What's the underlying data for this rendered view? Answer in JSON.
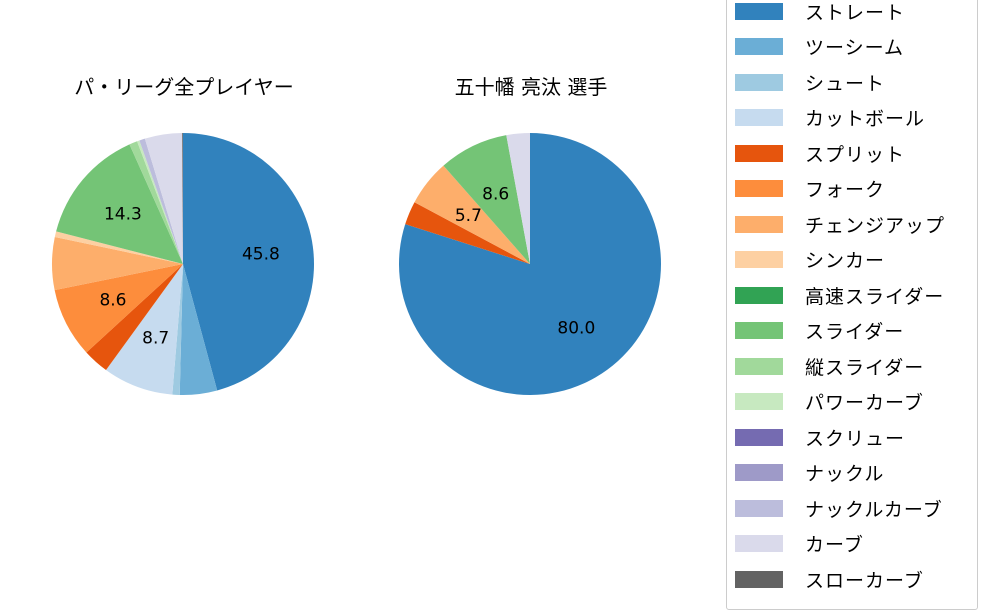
{
  "chart_data": [
    {
      "type": "pie",
      "title": "パ・リーグ全プレイヤー",
      "start_angle": 90,
      "direction": "clockwise",
      "categories": [
        "ストレート",
        "ツーシーム",
        "シュート",
        "カットボール",
        "スプリット",
        "フォーク",
        "チェンジアップ",
        "シンカー",
        "高速スライダー",
        "スライダー",
        "縦スライダー",
        "パワーカーブ",
        "スクリュー",
        "ナックル",
        "ナックルカーブ",
        "カーブ",
        "スローカーブ"
      ],
      "values": [
        45.8,
        4.6,
        0.9,
        8.7,
        3.2,
        8.6,
        6.5,
        0.7,
        0.0,
        14.3,
        1.0,
        0.3,
        0.0,
        0.0,
        0.7,
        4.6,
        0.1
      ],
      "labels_shown": [
        "45.8",
        "8.7",
        "8.6",
        "14.3"
      ]
    },
    {
      "type": "pie",
      "title": "五十幡 亮汰  選手",
      "start_angle": 90,
      "direction": "clockwise",
      "categories": [
        "ストレート",
        "ツーシーム",
        "シュート",
        "カットボール",
        "スプリット",
        "フォーク",
        "チェンジアップ",
        "シンカー",
        "高速スライダー",
        "スライダー",
        "縦スライダー",
        "パワーカーブ",
        "スクリュー",
        "ナックル",
        "ナックルカーブ",
        "カーブ",
        "スローカーブ"
      ],
      "values": [
        80.0,
        0,
        0,
        0,
        2.9,
        0,
        5.7,
        0,
        0,
        8.6,
        0,
        0,
        0,
        0,
        0,
        2.9,
        0
      ],
      "labels_shown": [
        "80.0",
        "5.7",
        "8.6"
      ]
    }
  ],
  "titles": {
    "left": "パ・リーグ全プレイヤー",
    "right": "五十幡 亮汰  選手"
  },
  "legend": {
    "items": [
      {
        "label": "ストレート",
        "color": "#3182bd"
      },
      {
        "label": "ツーシーム",
        "color": "#6baed6"
      },
      {
        "label": "シュート",
        "color": "#9ecae1"
      },
      {
        "label": "カットボール",
        "color": "#c6dbef"
      },
      {
        "label": "スプリット",
        "color": "#e6550d"
      },
      {
        "label": "フォーク",
        "color": "#fd8d3c"
      },
      {
        "label": "チェンジアップ",
        "color": "#fdae6b"
      },
      {
        "label": "シンカー",
        "color": "#fdd0a2"
      },
      {
        "label": "高速スライダー",
        "color": "#31a354"
      },
      {
        "label": "スライダー",
        "color": "#74c476"
      },
      {
        "label": "縦スライダー",
        "color": "#a1d99b"
      },
      {
        "label": "パワーカーブ",
        "color": "#c7e9c0"
      },
      {
        "label": "スクリュー",
        "color": "#756bb1"
      },
      {
        "label": "ナックル",
        "color": "#9e9ac8"
      },
      {
        "label": "ナックルカーブ",
        "color": "#bcbddc"
      },
      {
        "label": "カーブ",
        "color": "#dadaeb"
      },
      {
        "label": "スローカーブ",
        "color": "#636363"
      }
    ]
  }
}
